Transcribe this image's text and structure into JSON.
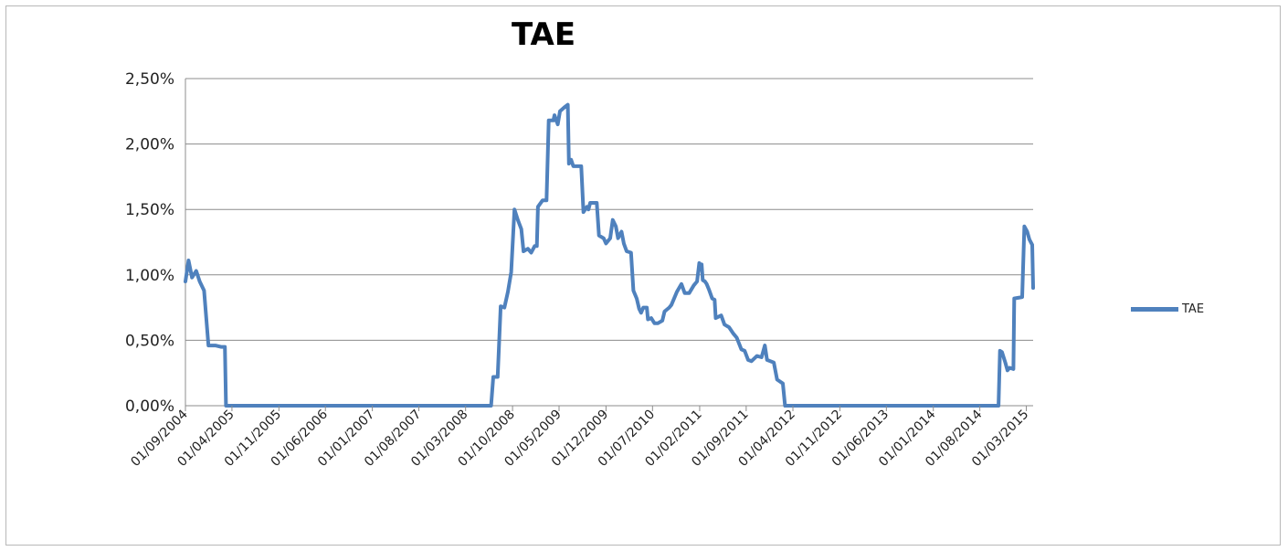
{
  "chart_data": {
    "type": "line",
    "title": "TAE",
    "xlabel": "",
    "ylabel": "",
    "ylim": [
      0,
      0.025
    ],
    "y_tick_labels": [
      "0,00%",
      "0,50%",
      "1,00%",
      "1,50%",
      "2,00%",
      "2,50%"
    ],
    "x_tick_labels": [
      "01/09/2004",
      "01/04/2005",
      "01/11/2005",
      "01/06/2006",
      "01/01/2007",
      "01/08/2007",
      "01/03/2008",
      "01/10/2008",
      "01/05/2009",
      "01/12/2009",
      "01/07/2010",
      "01/02/2011",
      "01/09/2011",
      "01/04/2012",
      "01/11/2012",
      "01/06/2013",
      "01/01/2014",
      "01/08/2014",
      "01/03/2015"
    ],
    "grid": true,
    "legend": "right",
    "series": [
      {
        "name": "TAE",
        "color": "#4f81bd",
        "points": [
          [
            "2004-09-01",
            0.0095
          ],
          [
            "2004-09-15",
            0.0111
          ],
          [
            "2004-10-01",
            0.0098
          ],
          [
            "2004-10-20",
            0.0103
          ],
          [
            "2004-11-05",
            0.0095
          ],
          [
            "2004-11-25",
            0.0088
          ],
          [
            "2004-12-15",
            0.0046
          ],
          [
            "2005-01-15",
            0.0046
          ],
          [
            "2005-02-10",
            0.0045
          ],
          [
            "2005-02-28",
            0.0045
          ],
          [
            "2005-03-05",
            0.0
          ],
          [
            "2008-06-25",
            0.0
          ],
          [
            "2008-07-05",
            0.0022
          ],
          [
            "2008-07-25",
            0.0022
          ],
          [
            "2008-08-08",
            0.0076
          ],
          [
            "2008-08-25",
            0.0075
          ],
          [
            "2008-09-10",
            0.0087
          ],
          [
            "2008-09-25",
            0.0102
          ],
          [
            "2008-10-10",
            0.015
          ],
          [
            "2008-10-25",
            0.0142
          ],
          [
            "2008-11-10",
            0.0135
          ],
          [
            "2008-11-20",
            0.0118
          ],
          [
            "2008-12-10",
            0.012
          ],
          [
            "2008-12-25",
            0.0117
          ],
          [
            "2009-01-10",
            0.0122
          ],
          [
            "2009-01-20",
            0.0122
          ],
          [
            "2009-01-25",
            0.0152
          ],
          [
            "2009-02-15",
            0.0157
          ],
          [
            "2009-03-05",
            0.0157
          ],
          [
            "2009-03-15",
            0.0218
          ],
          [
            "2009-04-05",
            0.0218
          ],
          [
            "2009-04-10",
            0.0222
          ],
          [
            "2009-04-25",
            0.0215
          ],
          [
            "2009-05-05",
            0.0225
          ],
          [
            "2009-05-25",
            0.0228
          ],
          [
            "2009-06-10",
            0.023
          ],
          [
            "2009-06-15",
            0.0185
          ],
          [
            "2009-06-25",
            0.0188
          ],
          [
            "2009-07-05",
            0.0183
          ],
          [
            "2009-08-10",
            0.0183
          ],
          [
            "2009-08-20",
            0.0148
          ],
          [
            "2009-09-05",
            0.0152
          ],
          [
            "2009-09-12",
            0.015
          ],
          [
            "2009-09-20",
            0.0155
          ],
          [
            "2009-10-20",
            0.0155
          ],
          [
            "2009-10-30",
            0.013
          ],
          [
            "2009-11-20",
            0.0128
          ],
          [
            "2009-12-01",
            0.0124
          ],
          [
            "2009-12-20",
            0.0128
          ],
          [
            "2010-01-01",
            0.0142
          ],
          [
            "2010-01-15",
            0.0137
          ],
          [
            "2010-01-25",
            0.0128
          ],
          [
            "2010-02-10",
            0.0133
          ],
          [
            "2010-02-20",
            0.0124
          ],
          [
            "2010-03-05",
            0.0118
          ],
          [
            "2010-03-25",
            0.0117
          ],
          [
            "2010-04-05",
            0.0088
          ],
          [
            "2010-04-20",
            0.0082
          ],
          [
            "2010-05-01",
            0.0074
          ],
          [
            "2010-05-10",
            0.0071
          ],
          [
            "2010-05-20",
            0.0075
          ],
          [
            "2010-06-05",
            0.0075
          ],
          [
            "2010-06-10",
            0.0066
          ],
          [
            "2010-06-25",
            0.0067
          ],
          [
            "2010-07-10",
            0.0063
          ],
          [
            "2010-07-25",
            0.0063
          ],
          [
            "2010-08-15",
            0.0065
          ],
          [
            "2010-08-25",
            0.0072
          ],
          [
            "2010-09-15",
            0.0075
          ],
          [
            "2010-09-25",
            0.0077
          ],
          [
            "2010-10-20",
            0.0087
          ],
          [
            "2010-11-10",
            0.0093
          ],
          [
            "2010-11-25",
            0.0086
          ],
          [
            "2010-12-15",
            0.0086
          ],
          [
            "2011-01-05",
            0.0092
          ],
          [
            "2011-01-20",
            0.0095
          ],
          [
            "2011-01-30",
            0.0109
          ],
          [
            "2011-02-05",
            0.0104
          ],
          [
            "2011-02-10",
            0.0108
          ],
          [
            "2011-02-15",
            0.0096
          ],
          [
            "2011-02-25",
            0.0095
          ],
          [
            "2011-03-05",
            0.0093
          ],
          [
            "2011-03-15",
            0.0089
          ],
          [
            "2011-03-30",
            0.0082
          ],
          [
            "2011-04-10",
            0.0081
          ],
          [
            "2011-04-15",
            0.0067
          ],
          [
            "2011-05-10",
            0.0069
          ],
          [
            "2011-05-25",
            0.0062
          ],
          [
            "2011-06-15",
            0.006
          ],
          [
            "2011-07-05",
            0.0055
          ],
          [
            "2011-07-20",
            0.0052
          ],
          [
            "2011-08-10",
            0.0043
          ],
          [
            "2011-08-25",
            0.0042
          ],
          [
            "2011-09-10",
            0.0035
          ],
          [
            "2011-09-25",
            0.0034
          ],
          [
            "2011-10-20",
            0.0038
          ],
          [
            "2011-11-10",
            0.0037
          ],
          [
            "2011-11-25",
            0.0046
          ],
          [
            "2011-12-05",
            0.0035
          ],
          [
            "2012-01-05",
            0.0033
          ],
          [
            "2012-01-20",
            0.002
          ],
          [
            "2012-02-15",
            0.0017
          ],
          [
            "2012-02-25",
            0.0
          ],
          [
            "2014-10-25",
            0.0
          ],
          [
            "2014-11-01",
            0.0042
          ],
          [
            "2014-11-10",
            0.0041
          ],
          [
            "2014-11-25",
            0.0033
          ],
          [
            "2014-12-05",
            0.0027
          ],
          [
            "2014-12-15",
            0.0029
          ],
          [
            "2015-01-01",
            0.0028
          ],
          [
            "2015-01-05",
            0.0082
          ],
          [
            "2015-02-10",
            0.0083
          ],
          [
            "2015-02-20",
            0.0137
          ],
          [
            "2015-03-05",
            0.0133
          ],
          [
            "2015-03-15",
            0.0127
          ],
          [
            "2015-03-28",
            0.0123
          ],
          [
            "2015-04-01",
            0.009
          ]
        ]
      }
    ]
  },
  "legend": {
    "label": "TAE"
  }
}
